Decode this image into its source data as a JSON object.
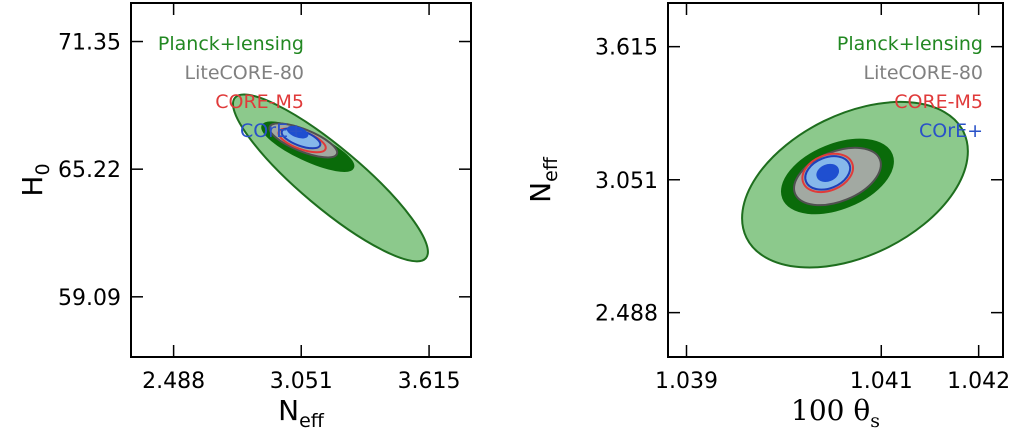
{
  "chart_data": [
    {
      "type": "contour",
      "xlabel": "N",
      "xlabel_sub": "eff",
      "ylabel": "H",
      "ylabel_sub": "0",
      "xlim": [
        2.3,
        3.8
      ],
      "ylim": [
        56.2,
        73.2
      ],
      "xticks": [
        "2.488",
        "3.051",
        "3.615"
      ],
      "yticks": [
        "59.09",
        "65.22",
        "71.35"
      ],
      "xtick_values": [
        2.488,
        3.051,
        3.615
      ],
      "ytick_values": [
        59.09,
        65.22,
        71.35
      ],
      "legend": [
        {
          "label": "Planck+lensing",
          "color": "#228822"
        },
        {
          "label": "LiteCORE-80",
          "color": "#808080"
        },
        {
          "label": "CORE-M5",
          "color": "#e03a3a"
        },
        {
          "label": "COrE+",
          "color": "#2a52c8"
        }
      ],
      "contours": [
        {
          "series": "Planck+lensing",
          "level": "95%",
          "cx": 3.18,
          "cy": 64.8,
          "rx": 0.55,
          "ry": 1.45,
          "angle": 40,
          "fill": "#8cc98c",
          "stroke": "#1e6e1e"
        },
        {
          "series": "Planck+lensing",
          "level": "68%",
          "cx": 3.08,
          "cy": 66.3,
          "rx": 0.22,
          "ry": 0.64,
          "angle": 25,
          "fill": "#0a6b0a",
          "stroke": "#0a6b0a"
        },
        {
          "series": "LiteCORE-80",
          "level": "95%",
          "cx": 3.06,
          "cy": 66.6,
          "rx": 0.16,
          "ry": 0.53,
          "angle": 22,
          "fill": "#a2a9a2",
          "stroke": "#505050"
        },
        {
          "series": "CORE-M5",
          "level": "95%",
          "cx": 3.055,
          "cy": 66.6,
          "rx": 0.11,
          "ry": 0.42,
          "angle": 20,
          "fill": "none",
          "stroke": "#e03a3a"
        },
        {
          "series": "COrE+",
          "level": "95%",
          "cx": 3.05,
          "cy": 66.7,
          "rx": 0.09,
          "ry": 0.36,
          "angle": 20,
          "fill": "#86b8ea",
          "stroke": "#1f3fb8"
        },
        {
          "series": "COrE+",
          "level": "68%",
          "cx": 3.035,
          "cy": 67.0,
          "rx": 0.045,
          "ry": 0.21,
          "angle": 20,
          "fill": "#1f4fd0",
          "stroke": "#1f4fd0"
        }
      ]
    },
    {
      "type": "contour",
      "xlabel": "100 θ",
      "xlabel_sub": "s",
      "ylabel": "N",
      "ylabel_sub": "eff",
      "xlim": [
        1.03881,
        1.04225
      ],
      "ylim": [
        2.3,
        3.8
      ],
      "xticks": [
        "1.039",
        "1.041",
        "1.042"
      ],
      "yticks": [
        "2.488",
        "3.051",
        "3.615"
      ],
      "xtick_values": [
        1.039,
        1.041,
        1.042
      ],
      "ytick_values": [
        2.488,
        3.051,
        3.615
      ],
      "legend": [
        {
          "label": "Planck+lensing",
          "color": "#228822"
        },
        {
          "label": "LiteCORE-80",
          "color": "#808080"
        },
        {
          "label": "CORE-M5",
          "color": "#e03a3a"
        },
        {
          "label": "COrE+",
          "color": "#2a52c8"
        }
      ],
      "contours": [
        {
          "series": "Planck+lensing",
          "level": "95%",
          "cx": 1.04073,
          "cy": 3.03,
          "rx": 0.00124,
          "ry": 0.3,
          "angle": -26,
          "fill": "#8cc98c",
          "stroke": "#1e6e1e"
        },
        {
          "series": "Planck+lensing",
          "level": "68%",
          "cx": 1.04055,
          "cy": 3.065,
          "rx": 0.0006,
          "ry": 0.135,
          "angle": -22,
          "fill": "#0a6b0a",
          "stroke": "#0a6b0a"
        },
        {
          "series": "LiteCORE-80",
          "level": "95%",
          "cx": 1.04055,
          "cy": 3.065,
          "rx": 0.00047,
          "ry": 0.105,
          "angle": -22,
          "fill": "#a2a9a2",
          "stroke": "#505050"
        },
        {
          "series": "CORE-M5",
          "level": "95%",
          "cx": 1.04045,
          "cy": 3.08,
          "rx": 0.00027,
          "ry": 0.075,
          "angle": -22,
          "fill": "none",
          "stroke": "#e03a3a"
        },
        {
          "series": "COrE+",
          "level": "95%",
          "cx": 1.04045,
          "cy": 3.08,
          "rx": 0.00024,
          "ry": 0.065,
          "angle": -22,
          "fill": "#86b8ea",
          "stroke": "#1f3fb8"
        },
        {
          "series": "COrE+",
          "level": "68%",
          "cx": 1.04045,
          "cy": 3.08,
          "rx": 0.00011,
          "ry": 0.032,
          "angle": -22,
          "fill": "#1f4fd0",
          "stroke": "#1f4fd0"
        }
      ]
    }
  ]
}
